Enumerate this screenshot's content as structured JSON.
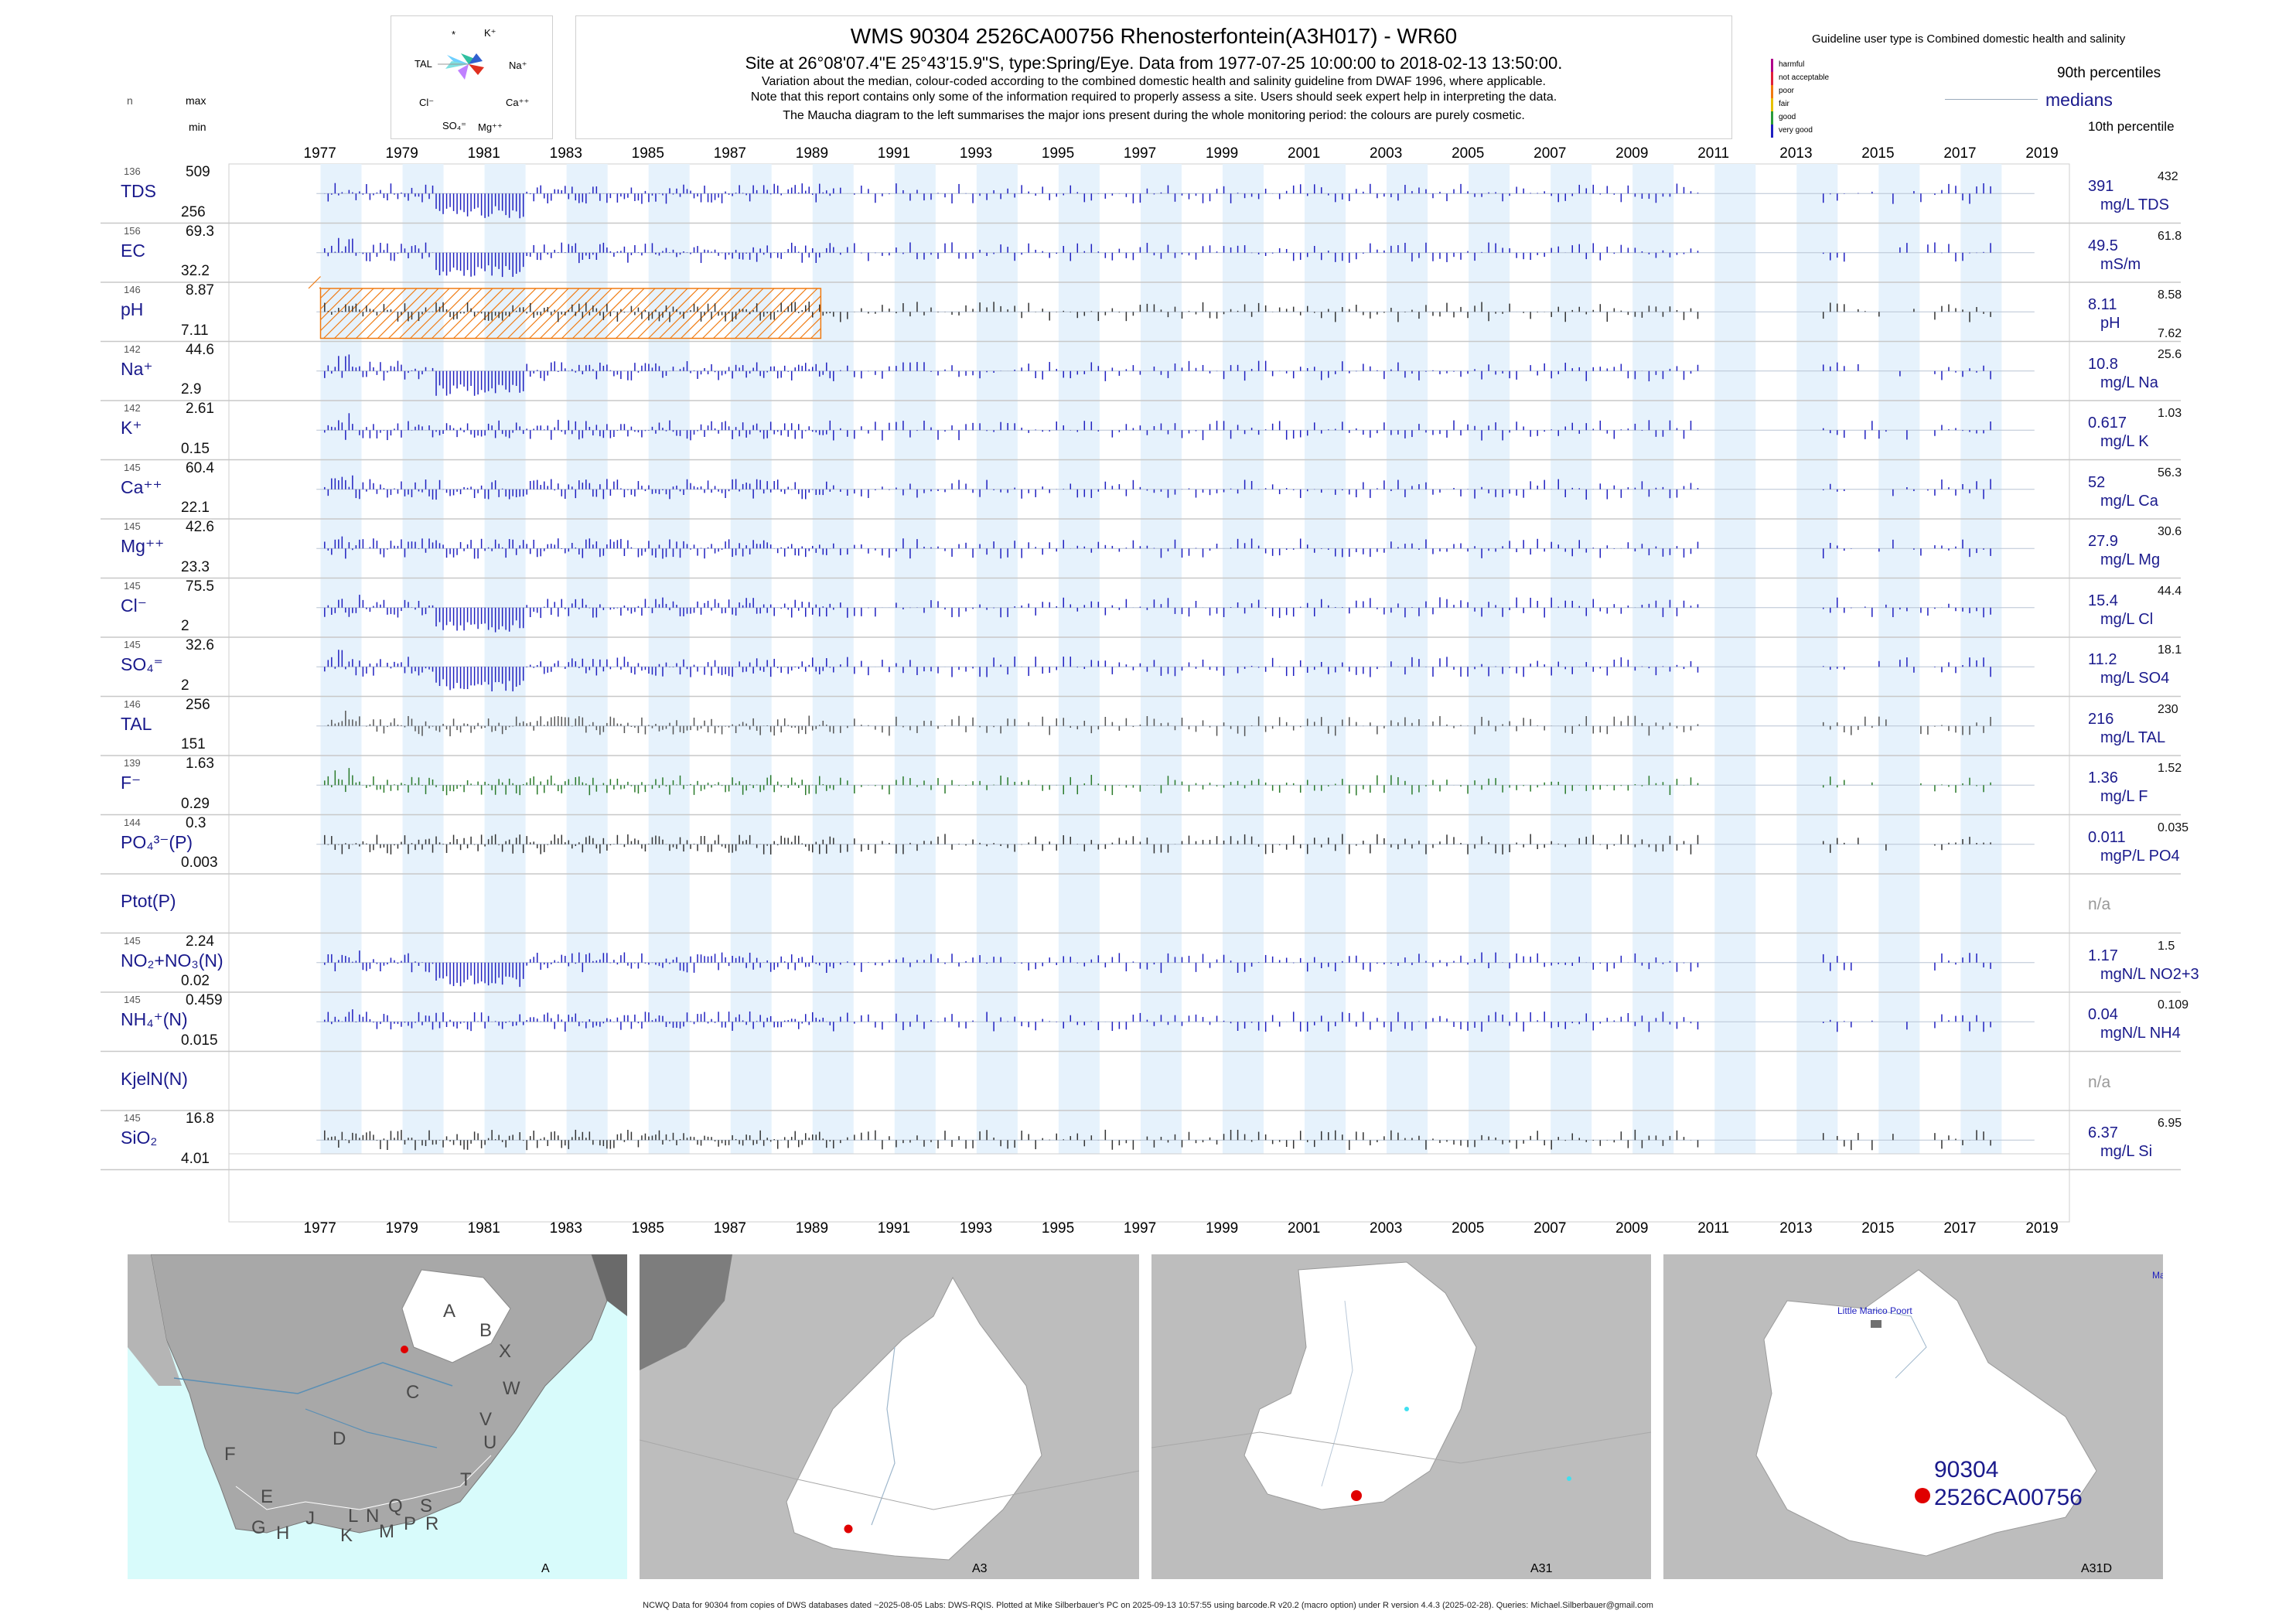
{
  "header": {
    "title": "WMS 90304 2526CA00756 Rhenosterfontein(A3H017) - WR60",
    "site_line": "Site at 26°08'07.4\"E 25°43'15.9\"S, type:Spring/Eye.  Data from 1977-07-25 10:00:00 to 2018-02-13 13:50:00.",
    "note1": "Variation about the median,  colour-coded according to the combined domestic health and salinity guideline from DWAF 1996, where applicable.",
    "note2": "Note that this report contains only some of the information required to properly assess a site. Users should seek expert help in interpreting the data.",
    "note3": "The Maucha diagram to the left summarises the major ions present during the whole monitoring period: the colours are purely cosmetic."
  },
  "maucha": {
    "k": "K⁺",
    "na": "Na⁺",
    "ca": "Ca⁺⁺",
    "mg": "Mg⁺⁺",
    "so4": "SO₄⁼",
    "cl": "Cl⁻",
    "tal": "TAL",
    "star": "*"
  },
  "left_header": {
    "n": "n",
    "max": "max",
    "min": "min"
  },
  "guideline": {
    "title": "Guideline user type is Combined domestic health and salinity",
    "levels": [
      {
        "label": "harmful",
        "color": "#b0008a"
      },
      {
        "label": "not acceptable",
        "color": "#e0203a"
      },
      {
        "label": "poor",
        "color": "#f07a10"
      },
      {
        "label": "fair",
        "color": "#e6c000"
      },
      {
        "label": "good",
        "color": "#2a9a3a"
      },
      {
        "label": "very good",
        "color": "#2020c0"
      }
    ],
    "p90": "90th percentiles",
    "medians": "medians",
    "p10": "10th percentile"
  },
  "years": [
    "1977",
    "1979",
    "1981",
    "1983",
    "1985",
    "1987",
    "1989",
    "1991",
    "1993",
    "1995",
    "1997",
    "1999",
    "2001",
    "2003",
    "2005",
    "2007",
    "2009",
    "2011",
    "2013",
    "2015",
    "2017",
    "2019"
  ],
  "chart_data": {
    "type": "bar",
    "x_range": [
      1977.0,
      2019.7
    ],
    "shaded_years": [
      1977.5,
      1979.5,
      1981.5,
      1983.5,
      1985.5,
      1987.5,
      1989.5,
      1991.5,
      1993.5,
      1995.5,
      1997.5,
      1999.5,
      2001.5,
      2003.5,
      2005.5,
      2007.5,
      2009.5,
      2011.5,
      2013.5,
      2015.5,
      2017.5
    ],
    "ph_hatch_range": [
      1977.5,
      1989.7
    ],
    "panels": [
      {
        "n": "136",
        "label": "TDS",
        "max": "509",
        "min": "256",
        "median": "391",
        "p90": "432",
        "p10": "",
        "unit": "mg/L TDS",
        "color": "#2020c0"
      },
      {
        "n": "156",
        "label": "EC",
        "max": "69.3",
        "min": "32.2",
        "median": "49.5",
        "p90": "61.8",
        "p10": "",
        "unit": "mS/m",
        "color": "#2020c0"
      },
      {
        "n": "146",
        "label": "pH",
        "max": "8.87",
        "min": "7.11",
        "median": "8.11",
        "p90": "8.58",
        "p10": "7.62",
        "unit": "pH",
        "color": "#333333"
      },
      {
        "n": "142",
        "label": "Na⁺",
        "max": "44.6",
        "min": "2.9",
        "median": "10.8",
        "p90": "25.6",
        "p10": "",
        "unit": "mg/L Na",
        "color": "#2020c0"
      },
      {
        "n": "142",
        "label": "K⁺",
        "max": "2.61",
        "min": "0.15",
        "median": "0.617",
        "p90": "1.03",
        "p10": "",
        "unit": "mg/L K",
        "color": "#2020c0"
      },
      {
        "n": "145",
        "label": "Ca⁺⁺",
        "max": "60.4",
        "min": "22.1",
        "median": "52",
        "p90": "56.3",
        "p10": "",
        "unit": "mg/L Ca",
        "color": "#2020c0"
      },
      {
        "n": "145",
        "label": "Mg⁺⁺",
        "max": "42.6",
        "min": "23.3",
        "median": "27.9",
        "p90": "30.6",
        "p10": "",
        "unit": "mg/L Mg",
        "color": "#2020c0"
      },
      {
        "n": "145",
        "label": "Cl⁻",
        "max": "75.5",
        "min": "2",
        "median": "15.4",
        "p90": "44.4",
        "p10": "",
        "unit": "mg/L Cl",
        "color": "#2020c0"
      },
      {
        "n": "145",
        "label": "SO₄⁼",
        "max": "32.6",
        "min": "2",
        "median": "11.2",
        "p90": "18.1",
        "p10": "",
        "unit": "mg/L SO4",
        "color": "#2020c0"
      },
      {
        "n": "146",
        "label": "TAL",
        "max": "256",
        "min": "151",
        "median": "216",
        "p90": "230",
        "p10": "",
        "unit": "mg/L TAL",
        "color": "#555555"
      },
      {
        "n": "139",
        "label": "F⁻",
        "max": "1.63",
        "min": "0.29",
        "median": "1.36",
        "p90": "1.52",
        "p10": "",
        "unit": "mg/L F",
        "color": "#2a7a2a"
      },
      {
        "n": "144",
        "label": "PO₄³⁻(P)",
        "max": "0.3",
        "min": "0.003",
        "median": "0.011",
        "p90": "0.035",
        "p10": "",
        "unit": "mgP/L PO4",
        "color": "#333333"
      },
      {
        "n": "",
        "label": "Ptot(P)",
        "max": "",
        "min": "",
        "median": "n/a",
        "p90": "",
        "p10": "",
        "unit": "",
        "color": "#333333"
      },
      {
        "n": "145",
        "label": "NO₂+NO₃(N)",
        "max": "2.24",
        "min": "0.02",
        "median": "1.17",
        "p90": "1.5",
        "p10": "",
        "unit": "mgN/L NO2+3",
        "color": "#2020c0"
      },
      {
        "n": "145",
        "label": "NH₄⁺(N)",
        "max": "0.459",
        "min": "0.015",
        "median": "0.04",
        "p90": "0.109",
        "p10": "",
        "unit": "mgN/L NH4",
        "color": "#2020c0"
      },
      {
        "n": "",
        "label": "KjelN(N)",
        "max": "",
        "min": "",
        "median": "n/a",
        "p90": "",
        "p10": "",
        "unit": "",
        "color": "#333333"
      },
      {
        "n": "145",
        "label": "SiO₂",
        "max": "16.8",
        "min": "4.01",
        "median": "6.37",
        "p90": "6.95",
        "p10": "",
        "unit": "mg/L Si",
        "color": "#333333"
      }
    ]
  },
  "maps": {
    "m1": {
      "caption": "A",
      "letters": [
        "A",
        "B",
        "X",
        "C",
        "W",
        "D",
        "V",
        "U",
        "T",
        "F",
        "E",
        "G",
        "H",
        "J",
        "K",
        "L",
        "N",
        "Q",
        "S",
        "R",
        "M",
        "P"
      ]
    },
    "m2": {
      "caption": "A3"
    },
    "m3": {
      "caption": "A31"
    },
    "m4": {
      "caption": "A31D",
      "place": "Little Marico Poort",
      "site_id": "90304",
      "site_code": "2526CA00756",
      "corner": "Ma"
    }
  },
  "footer": "NCWQ Data for 90304 from copies of DWS databases dated ~2025-08-05 Labs: DWS-RQIS. Plotted at Mike Silberbauer's PC on 2025-09-13 10:57:55 using barcode.R v20.2 (macro option) under R version 4.4.3 (2025-02-28). Queries: Michael.Silberbauer@gmail.com"
}
